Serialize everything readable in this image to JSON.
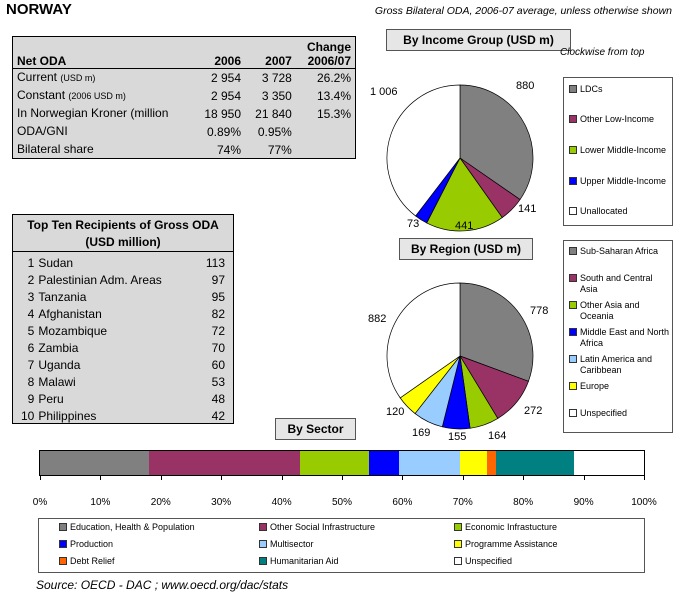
{
  "country": "NORWAY",
  "subtitle": "Gross Bilateral ODA, 2006-07 average, unless otherwise shown",
  "net_oda": {
    "headers": {
      "label": "Net ODA",
      "c2006": "2006",
      "c2007": "2007",
      "change_l1": "Change",
      "change_l2": "2006/07"
    },
    "rows": [
      {
        "label": "Current",
        "note": "(USD m)",
        "v2006": "2 954",
        "v2007": "3 728",
        "change": "26.2%"
      },
      {
        "label": "Constant",
        "note": "(2006 USD m)",
        "v2006": "2 954",
        "v2007": "3 350",
        "change": "13.4%"
      },
      {
        "label": "In Norwegian Kroner (million",
        "note": "",
        "v2006": "18 950",
        "v2007": "21 840",
        "change": "15.3%"
      },
      {
        "label": "ODA/GNI",
        "note": "",
        "v2006": "0.89%",
        "v2007": "0.95%",
        "change": ""
      },
      {
        "label": "Bilateral share",
        "note": "",
        "v2006": "74%",
        "v2007": "77%",
        "change": ""
      }
    ]
  },
  "top_ten": {
    "title_l1": "Top Ten Recipients of Gross ODA",
    "title_l2": "(USD million)",
    "rows": [
      {
        "rank": "1",
        "name": "Sudan",
        "value": "113"
      },
      {
        "rank": "2",
        "name": "Palestinian Adm. Areas",
        "value": "97"
      },
      {
        "rank": "3",
        "name": "Tanzania",
        "value": "95"
      },
      {
        "rank": "4",
        "name": "Afghanistan",
        "value": "82"
      },
      {
        "rank": "5",
        "name": "Mozambique",
        "value": "72"
      },
      {
        "rank": "6",
        "name": "Zambia",
        "value": "70"
      },
      {
        "rank": "7",
        "name": "Uganda",
        "value": "60"
      },
      {
        "rank": "8",
        "name": "Malawi",
        "value": "53"
      },
      {
        "rank": "9",
        "name": "Peru",
        "value": "48"
      },
      {
        "rank": "10",
        "name": "Philippines",
        "value": "42"
      }
    ]
  },
  "clockwise_note": "Clockwise from top",
  "source": "Source:  OECD - DAC ; www.oecd.org/dac/stats",
  "chart_data": [
    {
      "type": "pie",
      "title": "By Income Group (USD m)",
      "categories": [
        "LDCs",
        "Other Low-Income",
        "Lower Middle-Income",
        "Upper Middle-Income",
        "Unallocated"
      ],
      "values": [
        880,
        141,
        441,
        73,
        1006
      ],
      "colors": [
        "#808080",
        "#993366",
        "#99cc00",
        "#0000ff",
        "#ffffff"
      ],
      "labels": [
        "880",
        "141",
        "441",
        "73",
        "1 006"
      ]
    },
    {
      "type": "pie",
      "title": "By Region (USD m)",
      "categories": [
        "Sub-Saharan Africa",
        "South and Central Asia",
        "Other Asia and Oceania",
        "Middle East and North Africa",
        "Latin America and Caribbean",
        "Europe",
        "Unspecified"
      ],
      "values": [
        778,
        272,
        164,
        155,
        169,
        120,
        882
      ],
      "colors": [
        "#808080",
        "#993366",
        "#99cc00",
        "#0000ff",
        "#99ccff",
        "#ffff00",
        "#ffffff"
      ],
      "labels": [
        "778",
        "272",
        "164",
        "155",
        "169",
        "120",
        "882"
      ]
    },
    {
      "type": "bar",
      "title": "By Sector",
      "orientation": "horizontal-stacked-100",
      "categories": [
        "Education, Health & Population",
        "Other Social Infrastructure",
        "Economic Infrastucture",
        "Production",
        "Multisector",
        "Programme Assistance",
        "Debt Relief",
        "Humanitarian Aid",
        "Unspecified"
      ],
      "values": [
        18,
        25,
        11.5,
        5,
        10,
        4.5,
        1.5,
        13,
        11.5
      ],
      "colors": [
        "#808080",
        "#993366",
        "#99cc00",
        "#0000ff",
        "#99ccff",
        "#ffff00",
        "#ff6600",
        "#008080",
        "#ffffff"
      ],
      "xticks": [
        "0%",
        "10%",
        "20%",
        "30%",
        "40%",
        "50%",
        "60%",
        "70%",
        "80%",
        "90%",
        "100%"
      ],
      "xlim": [
        0,
        100
      ]
    }
  ]
}
